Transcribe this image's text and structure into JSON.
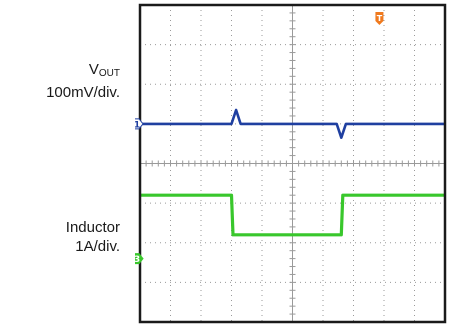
{
  "labels": {
    "vout_main": "V",
    "vout_sub": "OUT",
    "vout_scale": "100mV/div.",
    "inductor_name": "Inductor",
    "inductor_scale": "1A/div."
  },
  "markers": {
    "ch1": "1",
    "ch3": "3",
    "trigger": "T"
  },
  "colors": {
    "vout_trace": "#1f3fa0",
    "inductor_trace": "#39c72c",
    "trigger_marker": "#f07a1e",
    "grid": "#9a9a9a",
    "frame": "#1a1a1a"
  },
  "chart_data": {
    "type": "line",
    "grid": {
      "x_divisions": 10,
      "y_divisions": 8
    },
    "series": [
      {
        "name": "VOUT",
        "x": [
          0,
          2.8,
          3.0,
          3.15,
          3.3,
          3.5,
          6.2,
          6.45,
          6.6,
          6.75,
          6.95,
          10
        ],
        "y": [
          5,
          5,
          5,
          5.35,
          5,
          5,
          5,
          5,
          4.65,
          5,
          5,
          5
        ]
      },
      {
        "name": "Inductor",
        "x": [
          0,
          3.0,
          3.05,
          6.6,
          6.65,
          10
        ],
        "y": [
          3.2,
          3.2,
          2.2,
          2.2,
          3.2,
          3.2
        ]
      }
    ]
  }
}
